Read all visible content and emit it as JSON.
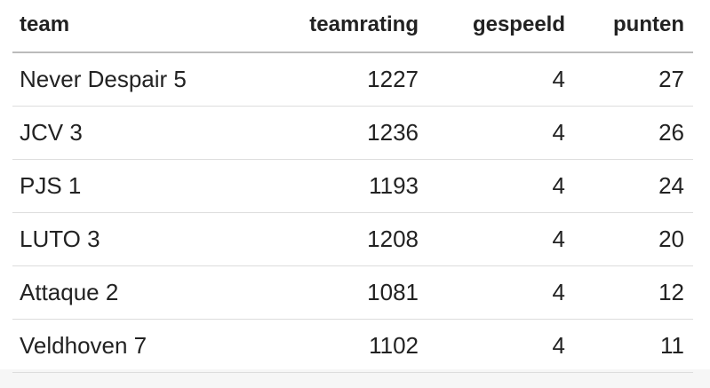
{
  "table": {
    "columns": [
      "team",
      "teamrating",
      "gespeeld",
      "punten"
    ],
    "rows": [
      [
        "Never Despair 5",
        1227,
        4,
        27
      ],
      [
        "JCV 3",
        1236,
        4,
        26
      ],
      [
        "PJS 1",
        1193,
        4,
        24
      ],
      [
        "LUTO 3",
        1208,
        4,
        20
      ],
      [
        "Attaque 2",
        1081,
        4,
        12
      ],
      [
        "Veldhoven 7",
        1102,
        4,
        11
      ]
    ]
  }
}
